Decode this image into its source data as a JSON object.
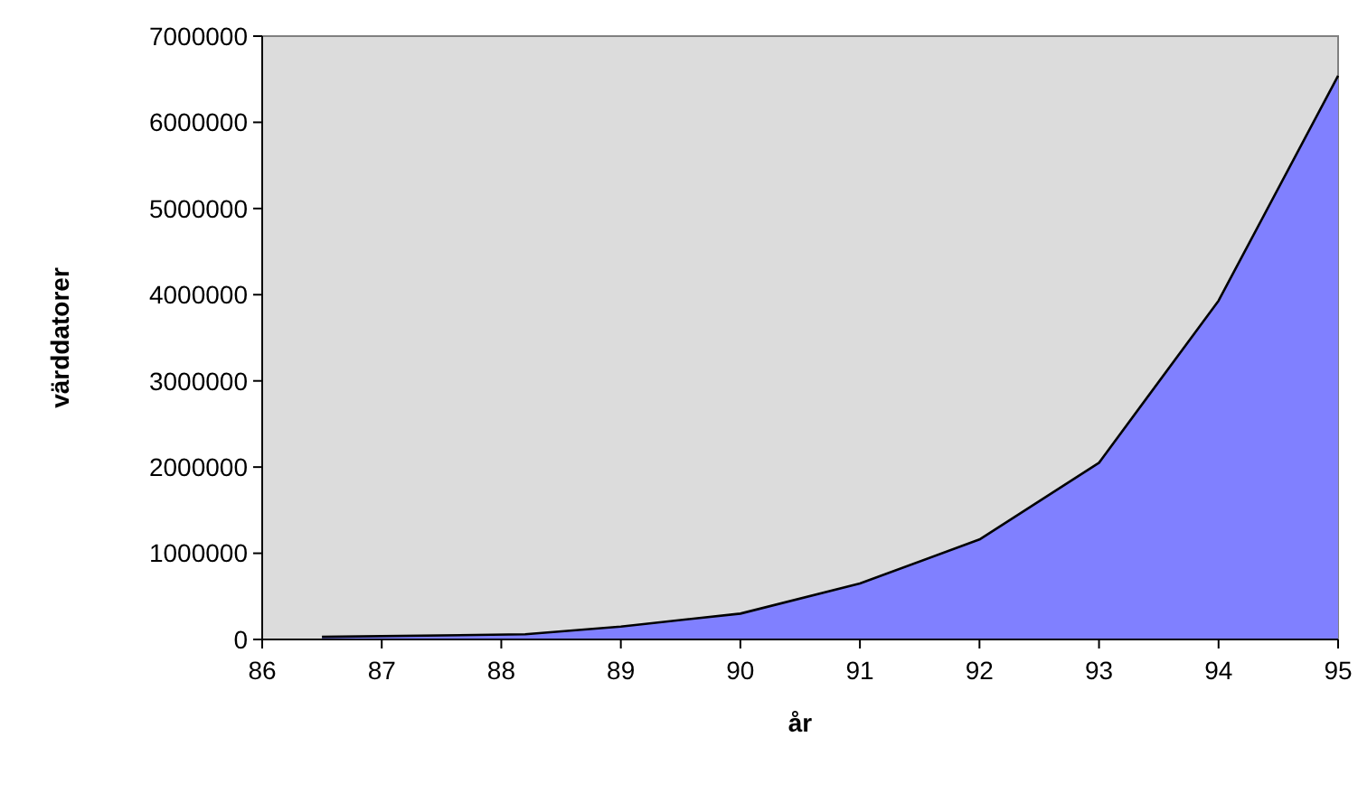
{
  "chart_data": {
    "type": "area",
    "xlabel": "år",
    "ylabel": "värddatorer",
    "x": [
      86.5,
      88.2,
      89,
      90,
      91,
      92,
      93,
      94,
      95
    ],
    "values": [
      30000,
      60000,
      150000,
      300000,
      650000,
      1160000,
      2050000,
      3930000,
      6540000
    ],
    "color": "#8080ff",
    "xlim": [
      86,
      95
    ],
    "ylim": [
      0,
      7000000
    ],
    "xticks": [
      86,
      87,
      88,
      89,
      90,
      91,
      92,
      93,
      94,
      95
    ],
    "yticks": [
      0,
      1000000,
      2000000,
      3000000,
      4000000,
      5000000,
      6000000,
      7000000
    ],
    "grid": false
  }
}
